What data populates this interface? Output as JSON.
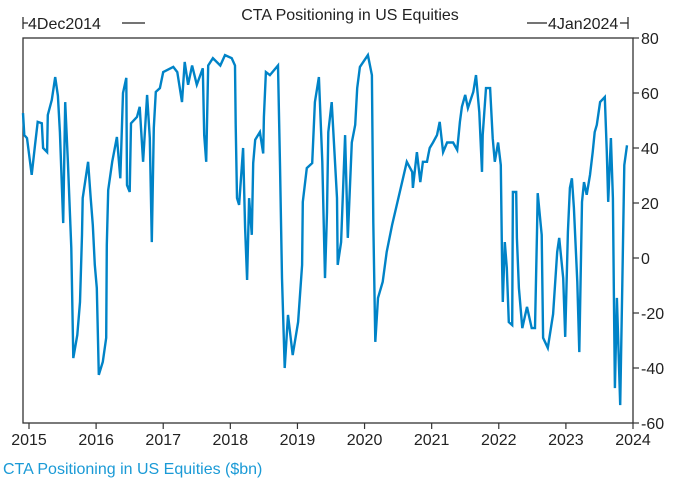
{
  "chart_data": {
    "type": "line",
    "title": "CTA Positioning in US Equities",
    "start_label": "4Dec2014",
    "end_label": "4Jan2024",
    "xlabel": "",
    "ylabel": "",
    "x_ticks": [
      "2015",
      "2016",
      "2017",
      "2018",
      "2019",
      "2020",
      "2021",
      "2022",
      "2023",
      "2024"
    ],
    "y_ticks": [
      "80",
      "60",
      "40",
      "20",
      "0",
      "-20",
      "-40",
      "-60"
    ],
    "xlim": [
      2014.91,
      2024.0
    ],
    "ylim": [
      -60,
      80
    ],
    "y_axis_side": "right",
    "grid": false,
    "legend_position": "bottom-left",
    "series": [
      {
        "name": "CTA Positioning in US Equities ($bn)",
        "color": "#0083c7",
        "points": [
          [
            2014.91,
            52.7
          ],
          [
            2014.93,
            44.7
          ],
          [
            2014.97,
            43.6
          ],
          [
            2015.04,
            30.2
          ],
          [
            2015.09,
            41
          ],
          [
            2015.13,
            49.5
          ],
          [
            2015.19,
            49
          ],
          [
            2015.21,
            40
          ],
          [
            2015.27,
            38.5
          ],
          [
            2015.28,
            52
          ],
          [
            2015.34,
            57.5
          ],
          [
            2015.39,
            65.8
          ],
          [
            2015.43,
            59
          ],
          [
            2015.46,
            45.8
          ],
          [
            2015.51,
            12.7
          ],
          [
            2015.54,
            56.7
          ],
          [
            2015.58,
            34.9
          ],
          [
            2015.63,
            3.6
          ],
          [
            2015.66,
            -36.4
          ],
          [
            2015.72,
            -28
          ],
          [
            2015.76,
            -16
          ],
          [
            2015.79,
            8.4
          ],
          [
            2015.8,
            21.8
          ],
          [
            2015.88,
            35
          ],
          [
            2015.92,
            21.8
          ],
          [
            2015.95,
            12
          ],
          [
            2015.98,
            -2.5
          ],
          [
            2016.01,
            -10.9
          ],
          [
            2016.04,
            -42.5
          ],
          [
            2016.1,
            -37.8
          ],
          [
            2016.15,
            -29
          ],
          [
            2016.16,
            4.7
          ],
          [
            2016.18,
            24.7
          ],
          [
            2016.24,
            35
          ],
          [
            2016.31,
            44
          ],
          [
            2016.36,
            29
          ],
          [
            2016.4,
            60
          ],
          [
            2016.45,
            65.5
          ],
          [
            2016.46,
            26.5
          ],
          [
            2016.5,
            24
          ],
          [
            2016.52,
            49
          ],
          [
            2016.61,
            51.3
          ],
          [
            2016.65,
            55
          ],
          [
            2016.7,
            35
          ],
          [
            2016.76,
            59.3
          ],
          [
            2016.8,
            43.6
          ],
          [
            2016.83,
            5.8
          ],
          [
            2016.86,
            47.3
          ],
          [
            2016.89,
            60.4
          ],
          [
            2016.95,
            61.8
          ],
          [
            2017.0,
            67.6
          ],
          [
            2017.15,
            69.5
          ],
          [
            2017.21,
            67.6
          ],
          [
            2017.28,
            56.7
          ],
          [
            2017.32,
            71.3
          ],
          [
            2017.37,
            63
          ],
          [
            2017.43,
            70
          ],
          [
            2017.5,
            63
          ],
          [
            2017.59,
            69
          ],
          [
            2017.61,
            44.7
          ],
          [
            2017.64,
            35
          ],
          [
            2017.67,
            70
          ],
          [
            2017.74,
            72.7
          ],
          [
            2017.85,
            70
          ],
          [
            2017.92,
            73.8
          ],
          [
            2018.02,
            72.7
          ],
          [
            2018.07,
            70
          ],
          [
            2018.08,
            48.4
          ],
          [
            2018.1,
            21.8
          ],
          [
            2018.13,
            19.3
          ],
          [
            2018.17,
            32.7
          ],
          [
            2018.19,
            40
          ],
          [
            2018.22,
            11
          ],
          [
            2018.25,
            -8
          ],
          [
            2018.28,
            21.8
          ],
          [
            2018.32,
            8.4
          ],
          [
            2018.34,
            34.5
          ],
          [
            2018.37,
            43
          ],
          [
            2018.44,
            45.8
          ],
          [
            2018.49,
            38
          ],
          [
            2018.5,
            51.3
          ],
          [
            2018.53,
            67.6
          ],
          [
            2018.59,
            66.5
          ],
          [
            2018.71,
            70
          ],
          [
            2018.74,
            33.8
          ],
          [
            2018.77,
            -7.3
          ],
          [
            2018.81,
            -40
          ],
          [
            2018.86,
            -20.7
          ],
          [
            2018.93,
            -35.3
          ],
          [
            2019.01,
            -23.3
          ],
          [
            2019.07,
            -2.5
          ],
          [
            2019.08,
            20.4
          ],
          [
            2019.14,
            32.7
          ],
          [
            2019.22,
            34.5
          ],
          [
            2019.26,
            56.7
          ],
          [
            2019.32,
            65.8
          ],
          [
            2019.37,
            35
          ],
          [
            2019.41,
            -7.3
          ],
          [
            2019.44,
            16.7
          ],
          [
            2019.46,
            45.8
          ],
          [
            2019.51,
            56.7
          ],
          [
            2019.59,
            21.8
          ],
          [
            2019.6,
            -2.5
          ],
          [
            2019.65,
            5.8
          ],
          [
            2019.71,
            44.7
          ],
          [
            2019.75,
            7.3
          ],
          [
            2019.81,
            42
          ],
          [
            2019.86,
            48.4
          ],
          [
            2019.89,
            61.8
          ],
          [
            2019.93,
            69.5
          ],
          [
            2020.05,
            73.8
          ],
          [
            2020.11,
            66.5
          ],
          [
            2020.13,
            13
          ],
          [
            2020.16,
            -30.5
          ],
          [
            2020.2,
            -14.5
          ],
          [
            2020.27,
            -8.7
          ],
          [
            2020.33,
            2.2
          ],
          [
            2020.41,
            12
          ],
          [
            2020.48,
            19.3
          ],
          [
            2020.56,
            27.6
          ],
          [
            2020.63,
            35
          ],
          [
            2020.71,
            31.3
          ],
          [
            2020.72,
            25.5
          ],
          [
            2020.78,
            38.5
          ],
          [
            2020.83,
            27.6
          ],
          [
            2020.87,
            35
          ],
          [
            2020.93,
            35
          ],
          [
            2020.95,
            37.5
          ],
          [
            2020.97,
            40
          ],
          [
            2021.02,
            42
          ],
          [
            2021.08,
            44.7
          ],
          [
            2021.12,
            49.5
          ],
          [
            2021.17,
            38.5
          ],
          [
            2021.23,
            42
          ],
          [
            2021.32,
            42
          ],
          [
            2021.38,
            39.3
          ],
          [
            2021.42,
            49.5
          ],
          [
            2021.45,
            55
          ],
          [
            2021.5,
            59.3
          ],
          [
            2021.54,
            54.5
          ],
          [
            2021.62,
            60.4
          ],
          [
            2021.66,
            66.5
          ],
          [
            2021.71,
            53
          ],
          [
            2021.75,
            31.3
          ],
          [
            2021.76,
            44.7
          ],
          [
            2021.81,
            61.8
          ],
          [
            2021.87,
            61.8
          ],
          [
            2021.91,
            43.6
          ],
          [
            2021.94,
            35
          ],
          [
            2021.99,
            42
          ],
          [
            2022.03,
            33.8
          ],
          [
            2022.05,
            -2.5
          ],
          [
            2022.06,
            -16
          ],
          [
            2022.09,
            5.8
          ],
          [
            2022.12,
            -3.6
          ],
          [
            2022.15,
            -23.3
          ],
          [
            2022.2,
            -24.4
          ],
          [
            2022.21,
            24
          ],
          [
            2022.26,
            24
          ],
          [
            2022.27,
            7.3
          ],
          [
            2022.3,
            -10.9
          ],
          [
            2022.35,
            -25.5
          ],
          [
            2022.42,
            -17.8
          ],
          [
            2022.49,
            -25.5
          ],
          [
            2022.54,
            -25.5
          ],
          [
            2022.57,
            9.5
          ],
          [
            2022.58,
            23.6
          ],
          [
            2022.64,
            8.4
          ],
          [
            2022.66,
            -29
          ],
          [
            2022.73,
            -32.7
          ],
          [
            2022.81,
            -20.4
          ],
          [
            2022.87,
            2.2
          ],
          [
            2022.9,
            7.3
          ],
          [
            2022.96,
            -7.3
          ],
          [
            2022.99,
            -28.7
          ],
          [
            2023.03,
            9.5
          ],
          [
            2023.06,
            25.5
          ],
          [
            2023.09,
            29
          ],
          [
            2023.12,
            18.2
          ],
          [
            2023.17,
            -8.7
          ],
          [
            2023.2,
            -34.2
          ],
          [
            2023.24,
            20.4
          ],
          [
            2023.27,
            27.6
          ],
          [
            2023.31,
            23
          ],
          [
            2023.36,
            30.2
          ],
          [
            2023.4,
            38.5
          ],
          [
            2023.43,
            45.8
          ],
          [
            2023.46,
            48.4
          ],
          [
            2023.51,
            56.7
          ],
          [
            2023.58,
            58.5
          ],
          [
            2023.61,
            38.5
          ],
          [
            2023.63,
            20.4
          ],
          [
            2023.67,
            43.6
          ],
          [
            2023.7,
            21.8
          ],
          [
            2023.72,
            -24.4
          ],
          [
            2023.73,
            -47.3
          ],
          [
            2023.76,
            -14.5
          ],
          [
            2023.81,
            -53.5
          ],
          [
            2023.84,
            -9.8
          ],
          [
            2023.87,
            33.8
          ],
          [
            2023.91,
            41
          ]
        ]
      }
    ]
  }
}
